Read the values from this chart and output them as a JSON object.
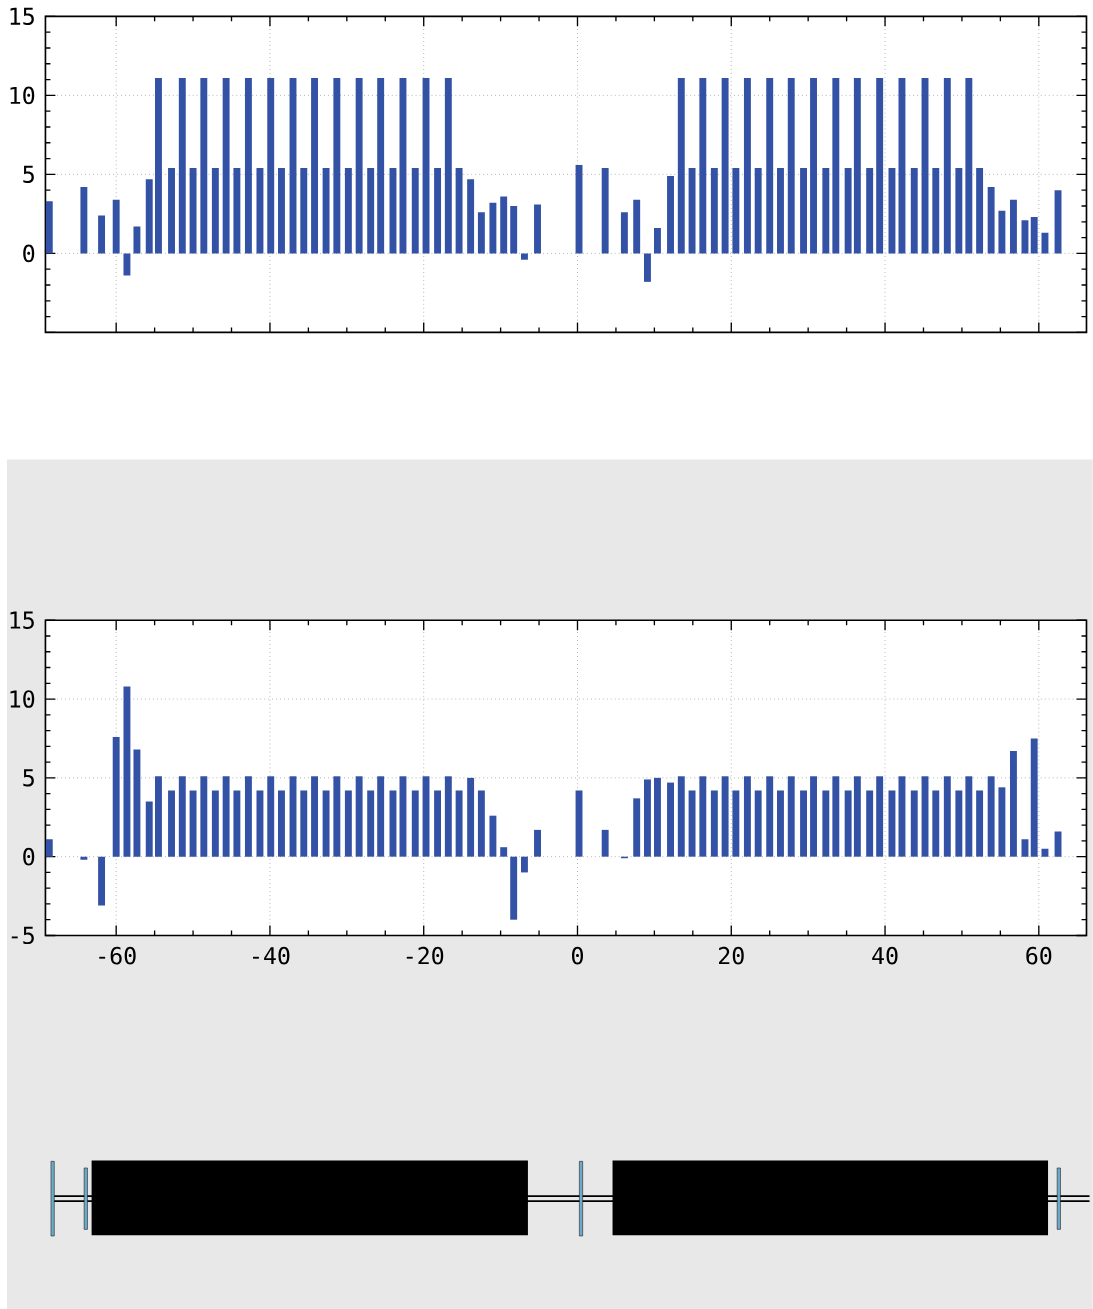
{
  "chart_data": [
    {
      "type": "bar",
      "tick_labels": "y",
      "grid": true,
      "xlim": [
        -69.2,
        66.2
      ],
      "ylim": [
        -5,
        15
      ],
      "xticks": [
        -60,
        -40,
        -20,
        0,
        20,
        40,
        60
      ],
      "yticks": [
        {
          "value": -5,
          "label": null
        },
        0,
        5,
        10,
        15
      ],
      "x": [
        -68.7,
        -64.2,
        -61.9,
        -60.0,
        -58.6,
        -57.3,
        -55.7,
        -54.5,
        -52.8,
        -51.4,
        -50.0,
        -48.6,
        -47.1,
        -45.7,
        -44.3,
        -42.8,
        -41.3,
        -39.9,
        -38.5,
        -37.0,
        -35.6,
        -34.2,
        -32.7,
        -31.3,
        -29.8,
        -28.4,
        -26.9,
        -25.6,
        -24.0,
        -22.7,
        -21.1,
        -19.7,
        -18.2,
        -16.8,
        -15.4,
        -13.9,
        -12.5,
        -11.0,
        -9.6,
        -8.3,
        -6.9,
        -5.2,
        0.2,
        3.6,
        6.1,
        7.7,
        9.1,
        10.4,
        12.1,
        13.5,
        14.9,
        16.3,
        17.8,
        19.2,
        20.6,
        22.1,
        23.5,
        25.0,
        26.4,
        27.8,
        29.4,
        30.7,
        32.3,
        33.6,
        35.2,
        36.4,
        38.0,
        39.3,
        40.9,
        42.2,
        43.8,
        45.2,
        46.6,
        48.1,
        49.6,
        50.9,
        52.3,
        53.8,
        55.2,
        56.7,
        58.2,
        59.4,
        60.8,
        62.5
      ],
      "series": [
        {
          "color": "#3352a6",
          "values": [
            3.3,
            4.2,
            2.4,
            3.4,
            -1.4,
            1.7,
            4.7,
            11.1,
            5.4,
            11.1,
            5.4,
            11.1,
            5.4,
            11.1,
            5.4,
            11.1,
            5.4,
            11.1,
            5.4,
            11.1,
            5.4,
            11.1,
            5.4,
            11.1,
            5.4,
            11.1,
            5.4,
            11.1,
            5.4,
            11.1,
            5.4,
            11.1,
            5.4,
            11.1,
            5.4,
            4.7,
            2.6,
            3.2,
            3.6,
            3.0,
            -0.4,
            3.1,
            5.6,
            5.4,
            2.6,
            3.4,
            -1.8,
            1.6,
            4.9,
            11.1,
            5.4,
            11.1,
            5.4,
            11.1,
            5.4,
            11.1,
            5.4,
            11.1,
            5.4,
            11.1,
            5.4,
            11.1,
            5.4,
            11.1,
            5.4,
            11.1,
            5.4,
            11.1,
            5.4,
            11.1,
            5.4,
            11.1,
            5.4,
            11.1,
            5.4,
            11.1,
            5.4,
            4.2,
            2.7,
            3.4,
            2.1,
            2.3,
            1.3,
            4.0
          ]
        }
      ]
    },
    {
      "type": "bar",
      "grid": true,
      "xlim": [
        -69.2,
        66.2
      ],
      "ylim": [
        -5,
        15
      ],
      "xticks": [
        -60,
        -40,
        -20,
        0,
        20,
        40,
        60
      ],
      "yticks": [
        -5,
        0,
        5,
        10,
        15
      ],
      "x": [
        -68.7,
        -64.2,
        -61.9,
        -60.0,
        -58.6,
        -57.3,
        -55.7,
        -54.5,
        -52.8,
        -51.4,
        -50.0,
        -48.6,
        -47.1,
        -45.7,
        -44.3,
        -42.8,
        -41.3,
        -39.9,
        -38.5,
        -37.0,
        -35.6,
        -34.2,
        -32.7,
        -31.3,
        -29.8,
        -28.4,
        -26.9,
        -25.6,
        -24.0,
        -22.7,
        -21.1,
        -19.7,
        -18.2,
        -16.8,
        -15.4,
        -13.9,
        -12.5,
        -11.0,
        -9.6,
        -8.3,
        -6.9,
        -5.2,
        0.2,
        3.6,
        6.1,
        7.7,
        9.1,
        10.4,
        12.1,
        13.5,
        14.9,
        16.3,
        17.8,
        19.2,
        20.6,
        22.1,
        23.5,
        25.0,
        26.4,
        27.8,
        29.4,
        30.7,
        32.3,
        33.6,
        35.2,
        36.4,
        38.0,
        39.3,
        40.9,
        42.2,
        43.8,
        45.2,
        46.6,
        48.1,
        49.6,
        50.9,
        52.3,
        53.8,
        55.2,
        56.7,
        58.2,
        59.4,
        60.8,
        62.5
      ],
      "series": [
        {
          "color": "#3352a6",
          "values": [
            1.1,
            -0.2,
            -3.1,
            7.6,
            10.8,
            6.8,
            3.5,
            5.1,
            4.2,
            5.1,
            4.2,
            5.1,
            4.2,
            5.1,
            4.2,
            5.1,
            4.2,
            5.1,
            4.2,
            5.1,
            4.2,
            5.1,
            4.2,
            5.1,
            4.2,
            5.1,
            4.2,
            5.1,
            4.2,
            5.1,
            4.2,
            5.1,
            4.2,
            5.1,
            4.2,
            5.0,
            4.2,
            2.6,
            0.6,
            -4.0,
            -1.0,
            1.7,
            4.2,
            1.7,
            -0.1,
            3.7,
            4.9,
            5.0,
            4.7,
            5.1,
            4.2,
            5.1,
            4.2,
            5.1,
            4.2,
            5.1,
            4.2,
            5.1,
            4.2,
            5.1,
            4.2,
            5.1,
            4.2,
            5.1,
            4.2,
            5.1,
            4.2,
            5.1,
            4.2,
            5.1,
            4.2,
            5.1,
            4.2,
            5.1,
            4.2,
            5.1,
            4.2,
            5.1,
            4.4,
            6.7,
            1.1,
            7.5,
            0.5,
            1.6
          ]
        }
      ]
    }
  ]
}
